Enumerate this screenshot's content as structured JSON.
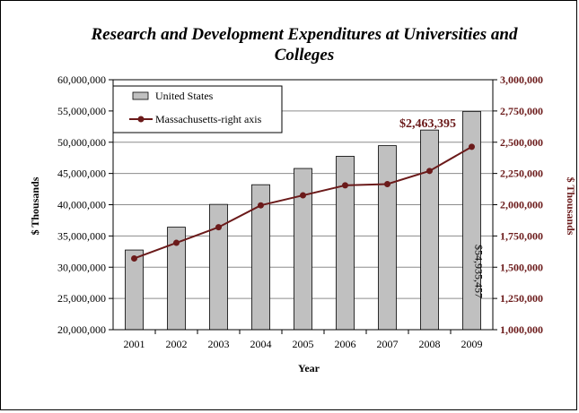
{
  "chart_data": {
    "type": "bar",
    "title_lines": [
      "Research and Development Expenditures at Universities and",
      "Colleges"
    ],
    "xlabel": "Year",
    "ylabel": "$ Thousands",
    "y2label": "$ Thousands",
    "categories": [
      "2001",
      "2002",
      "2003",
      "2004",
      "2005",
      "2006",
      "2007",
      "2008",
      "2009"
    ],
    "ylim": [
      20000000,
      60000000
    ],
    "y2lim": [
      1000000,
      3000000
    ],
    "yticks": [
      "20,000,000",
      "25,000,000",
      "30,000,000",
      "35,000,000",
      "40,000,000",
      "45,000,000",
      "50,000,000",
      "55,000,000",
      "60,000,000"
    ],
    "y2ticks": [
      "1,000,000",
      "1,250,000",
      "1,500,000",
      "1,750,000",
      "2,000,000",
      "2,250,000",
      "2,500,000",
      "2,750,000",
      "3,000,000"
    ],
    "grid": true,
    "legend_position": "top-left",
    "series": [
      {
        "name": "United States",
        "kind": "bar",
        "axis": "left",
        "color": "#c0c0c0",
        "values": [
          32750000,
          36400000,
          40050000,
          43200000,
          45800000,
          47750000,
          49450000,
          51950000,
          54935457
        ]
      },
      {
        "name": "Massachusetts-right axis",
        "kind": "line",
        "axis": "right",
        "color": "#6b1a1a",
        "values": [
          1570000,
          1695000,
          1820000,
          1995000,
          2075000,
          2155000,
          2165000,
          2270000,
          2463395
        ]
      }
    ],
    "annotations": {
      "bar_label": "$54,935,457",
      "line_label": "$2,463,395"
    }
  }
}
